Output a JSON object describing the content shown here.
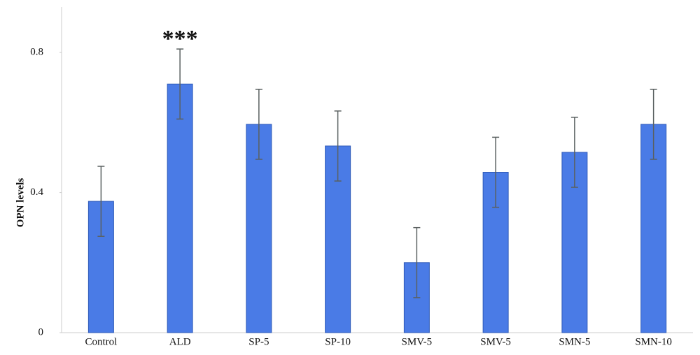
{
  "chart_data": {
    "type": "bar",
    "ylabel": "OPN levels",
    "categories": [
      "Control",
      "ALD",
      "SP-5",
      "SP-10",
      "SMV-5",
      "SMV-5",
      "SMN-5",
      "SMN-10"
    ],
    "values": [
      0.375,
      0.71,
      0.595,
      0.533,
      0.2,
      0.458,
      0.515,
      0.595
    ],
    "errors": [
      0.1,
      0.1,
      0.1,
      0.1,
      0.1,
      0.1,
      0.1,
      0.1
    ],
    "color": "#4a7be6",
    "ylim": [
      0,
      0.93
    ],
    "yticks": [
      0,
      0.4,
      0.8
    ],
    "annotations": [
      {
        "text": "***",
        "category": "ALD"
      }
    ]
  }
}
